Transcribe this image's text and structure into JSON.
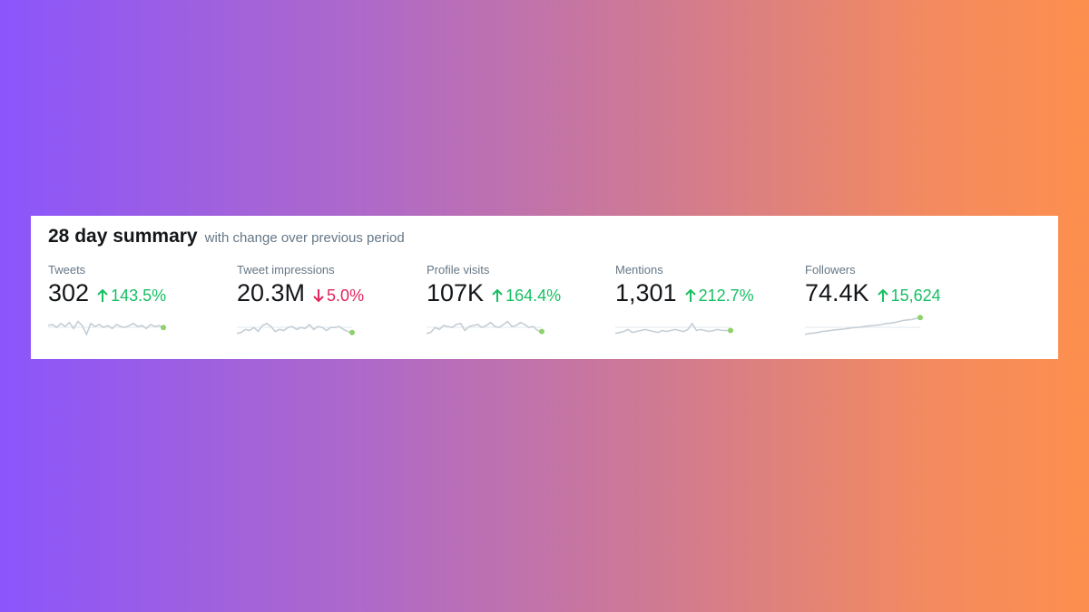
{
  "summary": {
    "title": "28 day summary",
    "subtitle": "with change over previous period"
  },
  "colors": {
    "up": "#17bf63",
    "down": "#e0245e",
    "sparkline": "#c5ced6",
    "endpoint": "#8fd16b"
  },
  "metrics": [
    {
      "label": "Tweets",
      "value": "302",
      "change": "143.5%",
      "direction": "up",
      "trend": [
        0.5,
        0.45,
        0.6,
        0.4,
        0.55,
        0.35,
        0.65,
        0.3,
        0.5,
        0.95,
        0.4,
        0.55,
        0.45,
        0.6,
        0.5,
        0.65,
        0.45,
        0.55,
        0.6,
        0.5,
        0.4,
        0.55,
        0.5,
        0.65,
        0.45,
        0.55,
        0.5,
        0.6
      ]
    },
    {
      "label": "Tweet impressions",
      "value": "20.3M",
      "change": "5.0%",
      "direction": "down",
      "trend": [
        0.9,
        0.85,
        0.7,
        0.75,
        0.6,
        0.8,
        0.5,
        0.4,
        0.55,
        0.8,
        0.7,
        0.75,
        0.6,
        0.55,
        0.7,
        0.6,
        0.65,
        0.45,
        0.7,
        0.55,
        0.6,
        0.75,
        0.6,
        0.6,
        0.55,
        0.7,
        0.8,
        0.85
      ]
    },
    {
      "label": "Profile visits",
      "value": "107K",
      "change": "164.4%",
      "direction": "up",
      "trend": [
        0.9,
        0.85,
        0.6,
        0.7,
        0.5,
        0.55,
        0.6,
        0.45,
        0.4,
        0.75,
        0.55,
        0.5,
        0.45,
        0.6,
        0.5,
        0.35,
        0.55,
        0.6,
        0.45,
        0.3,
        0.55,
        0.5,
        0.35,
        0.45,
        0.6,
        0.55,
        0.75,
        0.8
      ]
    },
    {
      "label": "Mentions",
      "value": "1,301",
      "change": "212.7%",
      "direction": "up",
      "trend": [
        0.9,
        0.85,
        0.8,
        0.7,
        0.85,
        0.8,
        0.75,
        0.7,
        0.75,
        0.8,
        0.85,
        0.75,
        0.8,
        0.75,
        0.7,
        0.75,
        0.8,
        0.7,
        0.4,
        0.75,
        0.7,
        0.75,
        0.8,
        0.75,
        0.7,
        0.75,
        0.75,
        0.75
      ]
    },
    {
      "label": "Followers",
      "value": "74.4K",
      "change": "15,624",
      "direction": "up",
      "trend": [
        0.95,
        0.9,
        0.88,
        0.85,
        0.8,
        0.78,
        0.75,
        0.72,
        0.7,
        0.68,
        0.65,
        0.62,
        0.6,
        0.58,
        0.55,
        0.52,
        0.5,
        0.48,
        0.45,
        0.4,
        0.38,
        0.35,
        0.3,
        0.25,
        0.22,
        0.2,
        0.15,
        0.1
      ]
    }
  ]
}
